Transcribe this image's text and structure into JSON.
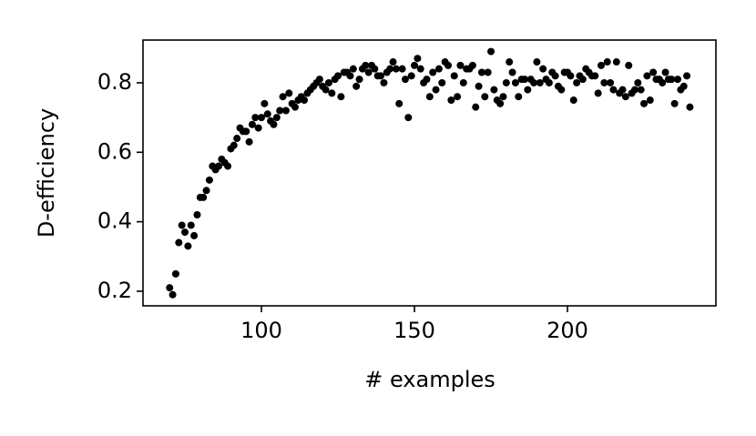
{
  "chart_data": {
    "type": "scatter",
    "xlabel": "# examples",
    "ylabel": "D-efficiency",
    "color": "#000000",
    "x": [
      70,
      71,
      72,
      73,
      74,
      75,
      76,
      77,
      78,
      79,
      80,
      81,
      82,
      83,
      84,
      85,
      86,
      87,
      88,
      89,
      90,
      91,
      92,
      93,
      94,
      95,
      96,
      97,
      98,
      99,
      100,
      101,
      102,
      103,
      104,
      105,
      106,
      107,
      108,
      109,
      110,
      111,
      112,
      113,
      114,
      115,
      116,
      117,
      118,
      119,
      120,
      121,
      122,
      123,
      124,
      125,
      126,
      127,
      128,
      129,
      130,
      131,
      132,
      133,
      134,
      135,
      136,
      137,
      138,
      139,
      140,
      141,
      142,
      143,
      144,
      145,
      146,
      147,
      148,
      149,
      150,
      151,
      152,
      153,
      154,
      155,
      156,
      157,
      158,
      159,
      160,
      161,
      162,
      163,
      164,
      165,
      166,
      167,
      168,
      169,
      170,
      171,
      172,
      173,
      174,
      175,
      176,
      177,
      178,
      179,
      180,
      181,
      182,
      183,
      184,
      185,
      186,
      187,
      188,
      189,
      190,
      191,
      192,
      193,
      194,
      195,
      196,
      197,
      198,
      199,
      200,
      201,
      202,
      203,
      204,
      205,
      206,
      207,
      208,
      209,
      210,
      211,
      212,
      213,
      214,
      215,
      216,
      217,
      218,
      219,
      220,
      221,
      222,
      223,
      224,
      225,
      226,
      227,
      228,
      229,
      230,
      231,
      232,
      233,
      234,
      235,
      236,
      237,
      238,
      239,
      240
    ],
    "y": [
      0.21,
      0.19,
      0.25,
      0.34,
      0.39,
      0.37,
      0.33,
      0.39,
      0.36,
      0.42,
      0.47,
      0.47,
      0.49,
      0.52,
      0.56,
      0.55,
      0.56,
      0.58,
      0.57,
      0.56,
      0.61,
      0.62,
      0.64,
      0.67,
      0.66,
      0.66,
      0.63,
      0.68,
      0.7,
      0.67,
      0.7,
      0.74,
      0.71,
      0.69,
      0.68,
      0.7,
      0.72,
      0.76,
      0.72,
      0.77,
      0.74,
      0.73,
      0.75,
      0.76,
      0.75,
      0.77,
      0.78,
      0.79,
      0.8,
      0.81,
      0.79,
      0.78,
      0.8,
      0.77,
      0.81,
      0.82,
      0.76,
      0.83,
      0.83,
      0.82,
      0.84,
      0.79,
      0.81,
      0.84,
      0.85,
      0.83,
      0.85,
      0.84,
      0.82,
      0.82,
      0.8,
      0.83,
      0.84,
      0.86,
      0.84,
      0.74,
      0.84,
      0.81,
      0.7,
      0.82,
      0.85,
      0.87,
      0.84,
      0.8,
      0.81,
      0.76,
      0.83,
      0.78,
      0.84,
      0.8,
      0.86,
      0.85,
      0.75,
      0.82,
      0.76,
      0.85,
      0.8,
      0.84,
      0.84,
      0.85,
      0.73,
      0.79,
      0.83,
      0.76,
      0.83,
      0.89,
      0.78,
      0.75,
      0.74,
      0.76,
      0.8,
      0.86,
      0.83,
      0.8,
      0.76,
      0.81,
      0.81,
      0.78,
      0.81,
      0.8,
      0.86,
      0.8,
      0.84,
      0.81,
      0.8,
      0.83,
      0.82,
      0.79,
      0.78,
      0.83,
      0.83,
      0.82,
      0.75,
      0.8,
      0.82,
      0.81,
      0.84,
      0.83,
      0.82,
      0.82,
      0.77,
      0.85,
      0.8,
      0.86,
      0.8,
      0.78,
      0.86,
      0.77,
      0.78,
      0.76,
      0.85,
      0.77,
      0.78,
      0.8,
      0.78,
      0.74,
      0.82,
      0.75,
      0.83,
      0.81,
      0.81,
      0.8,
      0.83,
      0.81,
      0.81,
      0.74,
      0.81,
      0.78,
      0.79,
      0.82,
      0.73
    ],
    "xlim": [
      61.3,
      248.5
    ],
    "ylim": [
      0.158,
      0.923
    ],
    "xticks": [
      100,
      150,
      200
    ],
    "yticks": [
      0.2,
      0.4,
      0.6,
      0.8
    ]
  }
}
